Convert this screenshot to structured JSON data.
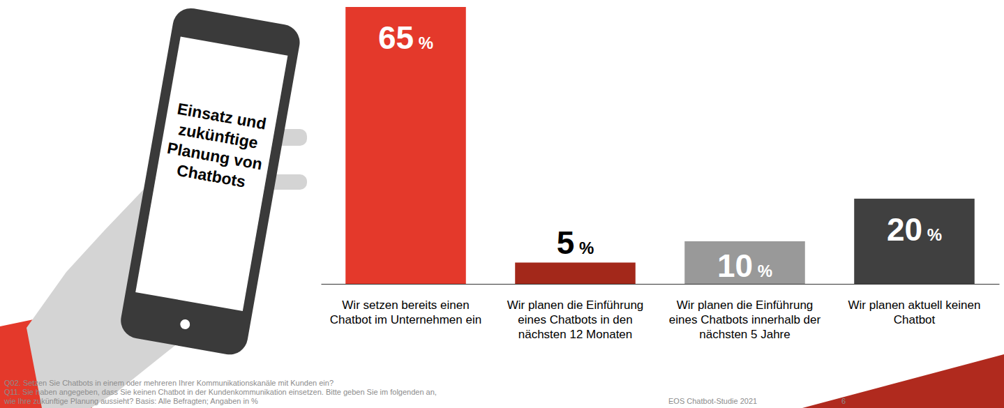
{
  "chart_data": {
    "type": "bar",
    "title": "Einsatz und zukünftige Planung von Chatbots",
    "categories": [
      "Wir setzen bereits einen Chatbot im Unternehmen ein",
      "Wir planen die Einführung eines Chatbots in den nächsten 12 Monaten",
      "Wir planen die Einführung eines Chatbots innerhalb der nächsten 5 Jahre",
      "Wir planen aktuell keinen Chatbot"
    ],
    "values": [
      65,
      5,
      10,
      20
    ],
    "value_labels": [
      "65 %",
      "5 %",
      "10 %",
      "20 %"
    ],
    "colors": [
      "#e4392b",
      "#a3281a",
      "#999999",
      "#404040"
    ],
    "ylim": [
      0,
      65
    ],
    "data_labels": true,
    "tick_labels": "x",
    "notes": [
      "Q02. Setzen Sie Chatbots in einem oder mehreren Ihrer Kommunikationskanäle mit Kunden ein?",
      "Q11. Sie haben angegeben, dass Sie keinen Chatbot in der Kundenkommunikation einsetzen. Bitte geben Sie im folgenden an,",
      "wie Ihre zukünftige Planung aussieht? Basis: Alle Befragten; Angaben in %"
    ],
    "source": "EOS Chatbot-Studie 2021",
    "page_number": 6
  }
}
